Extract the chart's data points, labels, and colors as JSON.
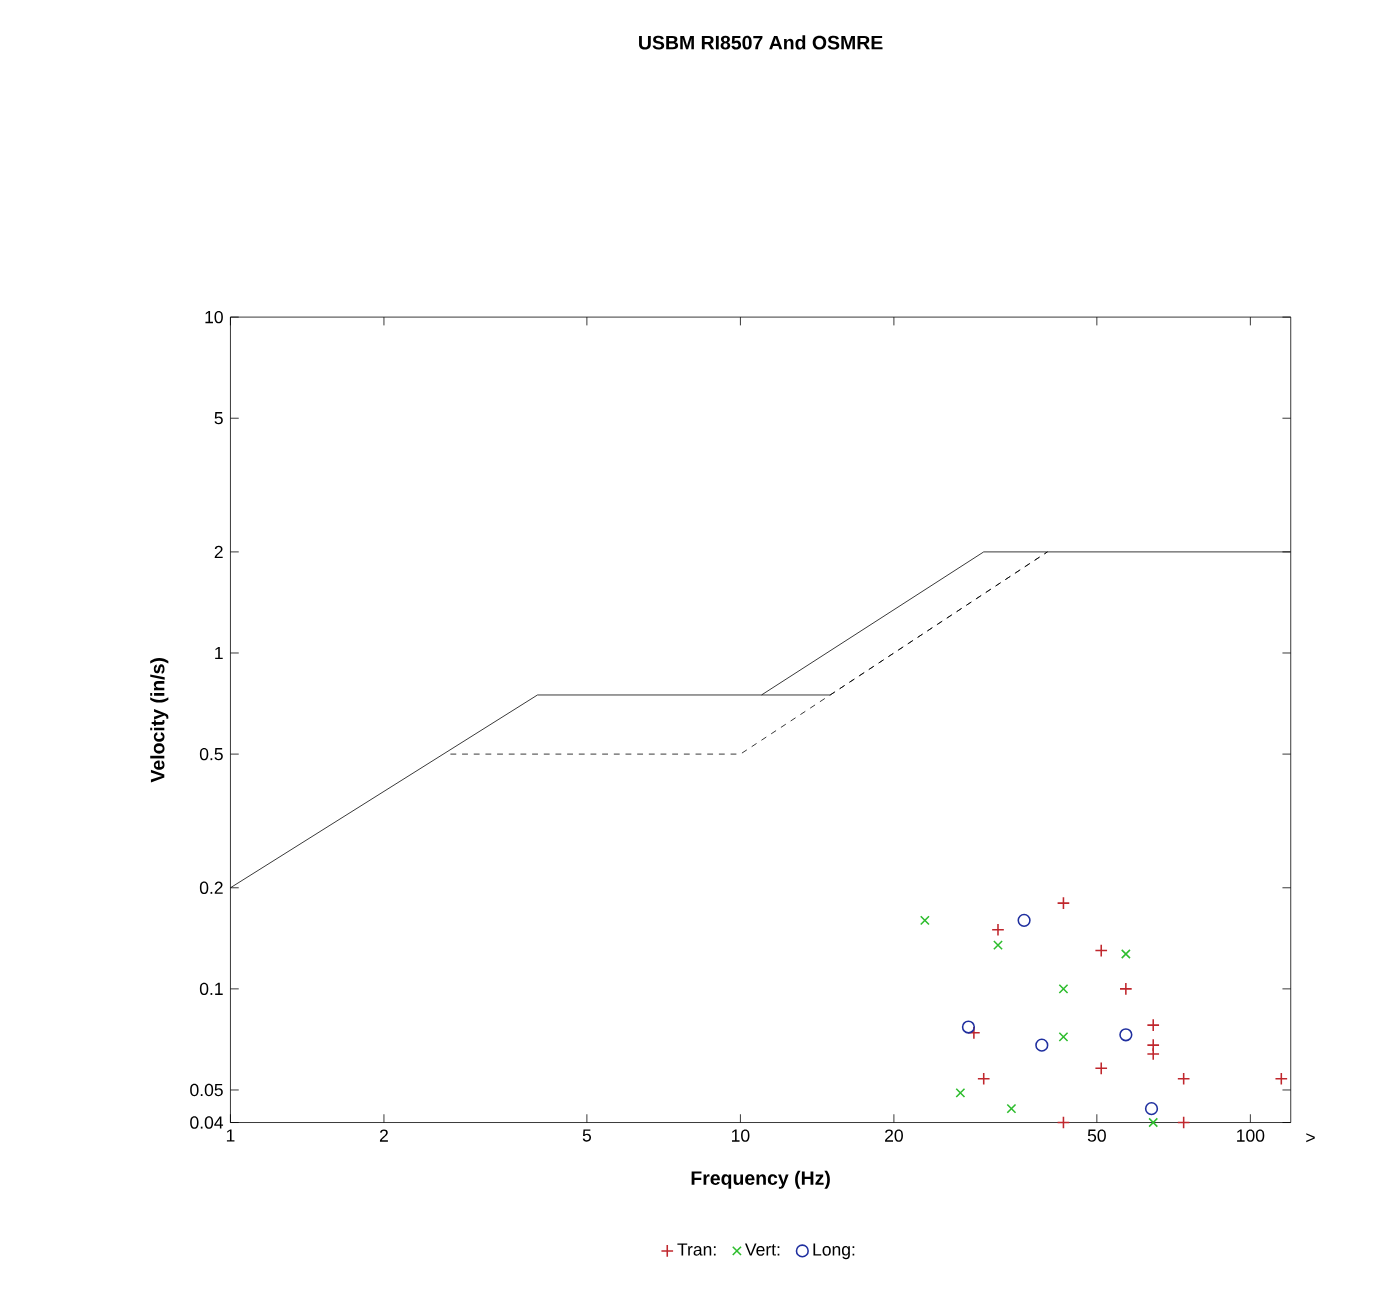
{
  "chart_data": {
    "type": "scatter",
    "title": "USBM RI8507 And OSMRE",
    "xlabel": "Frequency (Hz)",
    "ylabel": "Velocity (in/s)",
    "log": "xy",
    "xlim": [
      1,
      120
    ],
    "ylim": [
      0.04,
      10
    ],
    "xticks": [
      1,
      2,
      5,
      10,
      20,
      50,
      100
    ],
    "yticks": [
      0.04,
      0.05,
      0.1,
      0.2,
      0.5,
      1,
      2,
      5,
      10
    ],
    "grid": false,
    "legend": "bottom",
    "annotations": [
      ">"
    ],
    "series": [
      {
        "type": "line",
        "color": "#000000",
        "line_style": "solid",
        "marker": "none",
        "x": [
          1,
          4,
          11,
          30,
          120
        ],
        "values": [
          0.2,
          0.75,
          0.75,
          2,
          2
        ]
      },
      {
        "type": "line",
        "color": "#000000",
        "line_style": "solid",
        "marker": "none",
        "x": [
          11,
          15
        ],
        "values": [
          0.75,
          0.75
        ]
      },
      {
        "type": "line",
        "color": "#000000",
        "line_style": "dashed",
        "marker": "none",
        "x": [
          2.7,
          10,
          40
        ],
        "values": [
          0.5,
          0.5,
          2
        ]
      },
      {
        "type": "line",
        "color": "#000000",
        "line_style": "dashed",
        "marker": "none",
        "x": [
          15,
          40
        ],
        "values": [
          0.75,
          2
        ]
      },
      {
        "name": "Tran:",
        "color": "#c0272d",
        "marker": "plus",
        "x": [
          43,
          32,
          51,
          57,
          28.7,
          64.5,
          64.5,
          64.5,
          51,
          30,
          74,
          115,
          43,
          74
        ],
        "values": [
          0.18,
          0.15,
          0.13,
          0.1,
          0.074,
          0.078,
          0.068,
          0.064,
          0.058,
          0.054,
          0.054,
          0.054,
          0.04,
          0.04
        ]
      },
      {
        "name": "Vert:",
        "color": "#2ebd2e",
        "marker": "cross",
        "x": [
          23,
          32,
          57,
          43,
          43,
          27,
          34,
          64.5
        ],
        "values": [
          0.16,
          0.135,
          0.127,
          0.1,
          0.072,
          0.049,
          0.044,
          0.04
        ]
      },
      {
        "name": "Long:",
        "color": "#1f2f9f",
        "marker": "circle",
        "x": [
          36,
          28,
          39,
          57,
          64
        ],
        "values": [
          0.16,
          0.077,
          0.068,
          0.073,
          0.044
        ]
      }
    ]
  }
}
